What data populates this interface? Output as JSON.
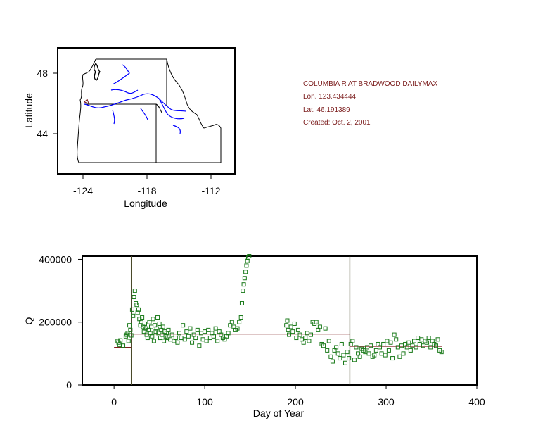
{
  "info": {
    "title": "COLUMBIA R AT BRADWOOD DAILYMAX",
    "lon": "Lon. 123.434444",
    "lat": "Lat. 46.191389",
    "created": "Created:   Oct. 2, 2001"
  },
  "chart_data": [
    {
      "type": "map",
      "xlabel": "Longitude",
      "ylabel": "Latitude",
      "xticks": [
        "-124",
        "-118",
        "-112"
      ],
      "yticks": [
        "48",
        "44"
      ],
      "xlim": [
        -126,
        -109.5
      ],
      "ylim": [
        41.3,
        49.6
      ],
      "station": {
        "lon": -123.434444,
        "lat": 46.191389
      },
      "colors": {
        "boundary": "#000000",
        "river": "#0000ff",
        "station": "#7b1c1c"
      }
    },
    {
      "type": "scatter",
      "xlabel": "Day of Year",
      "ylabel": "Q",
      "xticks": [
        "0",
        "100",
        "200",
        "300",
        "400"
      ],
      "yticks": [
        "0",
        "200000",
        "400000"
      ],
      "xlim": [
        -35,
        400
      ],
      "ylim": [
        0,
        410000
      ],
      "vlines": [
        19,
        260
      ],
      "fit_segments": [
        {
          "x0": 0,
          "x1": 19,
          "y": 120000
        },
        {
          "x0": 19,
          "x1": 260,
          "y": 162000
        },
        {
          "x0": 260,
          "x1": 362,
          "y": 123000
        }
      ],
      "colors": {
        "points": "#1a7a1a",
        "fit": "#7b1c1c",
        "vline": "#4a4a2a"
      },
      "series": [
        {
          "points": [
            [
              4,
              140000
            ],
            [
              5,
              135000
            ],
            [
              6,
              128000
            ],
            [
              7,
              142000
            ],
            [
              10,
              125000
            ],
            [
              13,
              155000
            ],
            [
              14,
              160000
            ],
            [
              15,
              165000
            ],
            [
              16,
              140000
            ],
            [
              17,
              190000
            ],
            [
              18,
              175000
            ],
            [
              19,
              158000
            ],
            [
              20,
              240000
            ],
            [
              21,
              220000
            ],
            [
              22,
              280000
            ],
            [
              23,
              300000
            ],
            [
              24,
              260000
            ],
            [
              25,
              255000
            ],
            [
              26,
              230000
            ],
            [
              27,
              240000
            ],
            [
              28,
              210000
            ],
            [
              29,
              190000
            ],
            [
              30,
              200000
            ],
            [
              31,
              215000
            ],
            [
              32,
              185000
            ],
            [
              33,
              170000
            ],
            [
              34,
              195000
            ],
            [
              35,
              180000
            ],
            [
              36,
              160000
            ],
            [
              37,
              150000
            ],
            [
              38,
              175000
            ],
            [
              39,
              200000
            ],
            [
              40,
              165000
            ],
            [
              41,
              185000
            ],
            [
              42,
              155000
            ],
            [
              43,
              210000
            ],
            [
              44,
              140000
            ],
            [
              45,
              190000
            ],
            [
              46,
              170000
            ],
            [
              47,
              180000
            ],
            [
              48,
              215000
            ],
            [
              49,
              165000
            ],
            [
              50,
              195000
            ],
            [
              51,
              150000
            ],
            [
              52,
              175000
            ],
            [
              53,
              160000
            ],
            [
              54,
              185000
            ],
            [
              55,
              140000
            ],
            [
              56,
              170000
            ],
            [
              57,
              155000
            ],
            [
              58,
              165000
            ],
            [
              59,
              150000
            ],
            [
              60,
              175000
            ],
            [
              62,
              145000
            ],
            [
              64,
              160000
            ],
            [
              66,
              140000
            ],
            [
              68,
              150000
            ],
            [
              70,
              135000
            ],
            [
              72,
              165000
            ],
            [
              74,
              150000
            ],
            [
              76,
              190000
            ],
            [
              78,
              145000
            ],
            [
              80,
              170000
            ],
            [
              82,
              155000
            ],
            [
              84,
              180000
            ],
            [
              86,
              135000
            ],
            [
              88,
              160000
            ],
            [
              90,
              150000
            ],
            [
              92,
              175000
            ],
            [
              94,
              125000
            ],
            [
              96,
              165000
            ],
            [
              98,
              145000
            ],
            [
              100,
              170000
            ],
            [
              102,
              140000
            ],
            [
              104,
              175000
            ],
            [
              106,
              150000
            ],
            [
              108,
              165000
            ],
            [
              110,
              155000
            ],
            [
              112,
              180000
            ],
            [
              114,
              140000
            ],
            [
              116,
              170000
            ],
            [
              118,
              160000
            ],
            [
              120,
              150000
            ],
            [
              122,
              145000
            ],
            [
              124,
              155000
            ],
            [
              126,
              165000
            ],
            [
              128,
              190000
            ],
            [
              130,
              200000
            ],
            [
              132,
              185000
            ],
            [
              134,
              175000
            ],
            [
              136,
              180000
            ],
            [
              138,
              200000
            ],
            [
              140,
              215000
            ],
            [
              141,
              260000
            ],
            [
              142,
              300000
            ],
            [
              143,
              320000
            ],
            [
              144,
              340000
            ],
            [
              145,
              360000
            ],
            [
              146,
              380000
            ],
            [
              147,
              395000
            ],
            [
              148,
              405000
            ],
            [
              149,
              410000
            ],
            [
              190,
              190000
            ],
            [
              191,
              205000
            ],
            [
              192,
              175000
            ],
            [
              193,
              160000
            ],
            [
              195,
              185000
            ],
            [
              197,
              170000
            ],
            [
              199,
              195000
            ],
            [
              201,
              150000
            ],
            [
              203,
              175000
            ],
            [
              205,
              160000
            ],
            [
              207,
              145000
            ],
            [
              209,
              135000
            ],
            [
              211,
              150000
            ],
            [
              213,
              165000
            ],
            [
              215,
              140000
            ],
            [
              217,
              160000
            ],
            [
              219,
              200000
            ],
            [
              221,
              195000
            ],
            [
              223,
              200000
            ],
            [
              225,
              175000
            ],
            [
              227,
              185000
            ],
            [
              229,
              130000
            ],
            [
              231,
              125000
            ],
            [
              233,
              180000
            ],
            [
              235,
              110000
            ],
            [
              237,
              140000
            ],
            [
              239,
              90000
            ],
            [
              241,
              75000
            ],
            [
              243,
              110000
            ],
            [
              245,
              120000
            ],
            [
              247,
              100000
            ],
            [
              249,
              85000
            ],
            [
              251,
              130000
            ],
            [
              253,
              95000
            ],
            [
              255,
              70000
            ],
            [
              257,
              105000
            ],
            [
              259,
              85000
            ],
            [
              261,
              130000
            ],
            [
              263,
              140000
            ],
            [
              265,
              80000
            ],
            [
              267,
              120000
            ],
            [
              269,
              100000
            ],
            [
              271,
              90000
            ],
            [
              273,
              115000
            ],
            [
              275,
              110000
            ],
            [
              277,
              105000
            ],
            [
              279,
              120000
            ],
            [
              281,
              100000
            ],
            [
              283,
              125000
            ],
            [
              285,
              90000
            ],
            [
              287,
              95000
            ],
            [
              289,
              110000
            ],
            [
              291,
              130000
            ],
            [
              293,
              120000
            ],
            [
              295,
              100000
            ],
            [
              297,
              130000
            ],
            [
              299,
              95000
            ],
            [
              301,
              140000
            ],
            [
              303,
              110000
            ],
            [
              305,
              135000
            ],
            [
              307,
              85000
            ],
            [
              309,
              160000
            ],
            [
              311,
              145000
            ],
            [
              313,
              120000
            ],
            [
              315,
              90000
            ],
            [
              317,
              125000
            ],
            [
              319,
              100000
            ],
            [
              321,
              130000
            ],
            [
              323,
              120000
            ],
            [
              325,
              135000
            ],
            [
              327,
              110000
            ],
            [
              329,
              125000
            ],
            [
              331,
              140000
            ],
            [
              333,
              120000
            ],
            [
              335,
              150000
            ],
            [
              337,
              130000
            ],
            [
              339,
              145000
            ],
            [
              341,
              125000
            ],
            [
              343,
              140000
            ],
            [
              345,
              135000
            ],
            [
              347,
              150000
            ],
            [
              349,
              120000
            ],
            [
              351,
              140000
            ],
            [
              353,
              130000
            ],
            [
              355,
              125000
            ],
            [
              357,
              145000
            ],
            [
              359,
              110000
            ],
            [
              361,
              105000
            ]
          ]
        }
      ]
    }
  ]
}
